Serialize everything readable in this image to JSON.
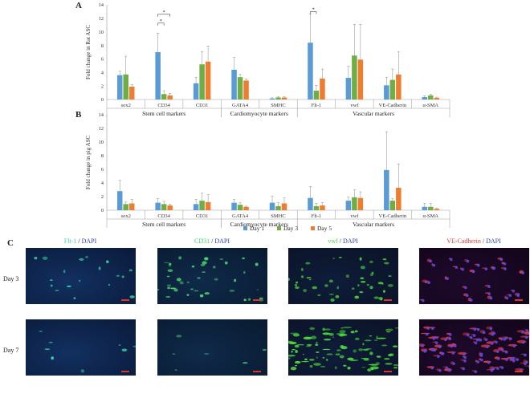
{
  "panel_labels": {
    "a": "A",
    "b": "B",
    "c": "C"
  },
  "legend": [
    {
      "name": "Day 1",
      "color": "#5b9bd5"
    },
    {
      "name": "Day 3",
      "color": "#70ad47"
    },
    {
      "name": "Day 5",
      "color": "#ed7d31"
    }
  ],
  "chart_data": [
    {
      "type": "bar",
      "title": "",
      "ylabel": "Fold change in Rat ASC",
      "ylim": [
        0,
        14
      ],
      "yticks": [
        0,
        2,
        4,
        6,
        8,
        10,
        12,
        14
      ],
      "categories": [
        "sox2",
        "CD34",
        "CD31",
        "GATA4",
        "SMHC",
        "Flt-1",
        "vwf",
        "VE-Cadherin",
        "α-SMA"
      ],
      "groups": [
        {
          "label": "Stem cell markers",
          "from": 0,
          "to": 2
        },
        {
          "label": "Cardiomyocyte markers",
          "from": 3,
          "to": 4
        },
        {
          "label": "Vascular markers",
          "from": 5,
          "to": 8
        }
      ],
      "series": [
        {
          "name": "Day 1",
          "values": [
            3.6,
            7.0,
            2.4,
            4.4,
            0.15,
            8.4,
            3.2,
            2.1,
            0.35
          ],
          "errors": [
            0.6,
            2.8,
            0.9,
            1.8,
            0.1,
            4.2,
            1.7,
            1.2,
            0.2
          ]
        },
        {
          "name": "Day 3",
          "values": [
            3.7,
            0.8,
            5.2,
            3.3,
            0.3,
            1.3,
            6.5,
            2.9,
            0.6
          ],
          "errors": [
            2.7,
            0.5,
            1.9,
            0.4,
            0.1,
            0.8,
            4.6,
            1.6,
            0.2
          ]
        },
        {
          "name": "Day 5",
          "values": [
            1.9,
            0.6,
            5.6,
            2.8,
            0.3,
            3.1,
            5.9,
            3.7,
            0.25
          ],
          "errors": [
            0.3,
            0.3,
            2.3,
            0.2,
            0.1,
            1.4,
            5.2,
            3.4,
            0.1
          ]
        }
      ],
      "significance": [
        {
          "category": 1,
          "pair": [
            0,
            1
          ],
          "label": "*"
        },
        {
          "category": 1,
          "pair": [
            0,
            2
          ],
          "label": "*"
        },
        {
          "category": 5,
          "pair": [
            0,
            1
          ],
          "label": "*"
        }
      ],
      "grid": false,
      "legend_position": "none"
    },
    {
      "type": "bar",
      "title": "",
      "ylabel": "Fold change in pig ASC",
      "ylim": [
        0,
        14
      ],
      "yticks": [
        0,
        2,
        4,
        6,
        8,
        10,
        12,
        14
      ],
      "categories": [
        "sox2",
        "CD34",
        "CD31",
        "GATA4",
        "SMHC",
        "Flt-1",
        "vwf",
        "VE-Cadherin",
        "α-SMA"
      ],
      "groups": [
        {
          "label": "Stem cell markers",
          "from": 0,
          "to": 2
        },
        {
          "label": "Cardiomyocyte markers",
          "from": 3,
          "to": 4
        },
        {
          "label": "Vascular markers",
          "from": 5,
          "to": 8
        }
      ],
      "series": [
        {
          "name": "Day 1",
          "values": [
            2.8,
            1.1,
            0.9,
            1.1,
            1.1,
            1.8,
            1.4,
            5.9,
            0.5
          ],
          "errors": [
            1.6,
            0.6,
            0.7,
            0.5,
            1.0,
            1.7,
            0.5,
            5.6,
            0.5
          ]
        },
        {
          "name": "Day 3",
          "values": [
            0.9,
            0.9,
            1.4,
            0.8,
            0.6,
            0.6,
            1.9,
            1.4,
            0.5
          ],
          "errors": [
            0.3,
            0.4,
            1.1,
            0.3,
            0.5,
            0.4,
            1.1,
            0.3,
            0.5
          ]
        },
        {
          "name": "Day 5",
          "values": [
            1.0,
            0.7,
            1.2,
            0.5,
            1.0,
            0.7,
            1.8,
            3.3,
            0.2
          ],
          "errors": [
            0.6,
            0.2,
            1.1,
            0.1,
            0.8,
            0.4,
            0.9,
            3.5,
            0.1
          ]
        }
      ],
      "grid": false,
      "legend_position": "bottom-center"
    }
  ],
  "microscopy": {
    "columns": [
      {
        "marker": "Flt-1",
        "stain": "DAPI",
        "marker_color": "#3fd9a0"
      },
      {
        "marker": "CD31",
        "stain": "DAPI",
        "marker_color": "#3fd96a"
      },
      {
        "marker": "vwf",
        "stain": "DAPI",
        "marker_color": "#46d93f"
      },
      {
        "marker": "VE-Cadherin",
        "stain": "DAPI",
        "marker_color": "#e23a3a"
      }
    ],
    "separator": "/",
    "rows": [
      {
        "label": "Day 3"
      },
      {
        "label": "Day 7"
      }
    ]
  }
}
